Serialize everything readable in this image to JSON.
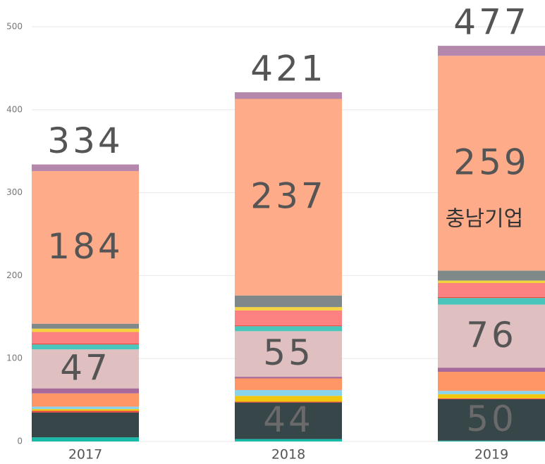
{
  "chart_data": {
    "type": "stacked_bar",
    "categories": [
      "2017",
      "2018",
      "2019"
    ],
    "totals": [
      334,
      421,
      477
    ],
    "annotation": "충남기업",
    "ylim": [
      0,
      500
    ],
    "yticks": [
      0,
      100,
      200,
      300,
      400,
      500
    ],
    "grid": true,
    "series": [
      {
        "color": "#1ab8a8",
        "values": [
          5,
          3,
          1
        ]
      },
      {
        "color": "#374649",
        "values": [
          30,
          44,
          50
        ],
        "value_labels": [
          null,
          "44",
          "50"
        ]
      },
      {
        "color": "#e8443a",
        "values": [
          2,
          1,
          1
        ]
      },
      {
        "color": "#f2c80f",
        "values": [
          2,
          7,
          5
        ]
      },
      {
        "color": "#8ad4eb",
        "values": [
          3,
          7,
          4
        ]
      },
      {
        "color": "#fe9666",
        "values": [
          16,
          14,
          23
        ]
      },
      {
        "color": "#a66999",
        "values": [
          6,
          2,
          5
        ]
      },
      {
        "color": "#dfbfbf",
        "values": [
          47,
          55,
          76
        ],
        "value_labels": [
          "47",
          "55",
          "76"
        ]
      },
      {
        "color": "#4ac5bb",
        "values": [
          6,
          6,
          8
        ]
      },
      {
        "color": "#e8443a",
        "values": [
          1,
          1,
          1
        ]
      },
      {
        "color": "#fb8281",
        "values": [
          14,
          18,
          17
        ]
      },
      {
        "color": "#f5d33f",
        "values": [
          4,
          4,
          3
        ]
      },
      {
        "color": "#7f898a",
        "values": [
          6,
          14,
          12
        ]
      },
      {
        "color": "#fdab89",
        "values": [
          184,
          237,
          259
        ],
        "value_labels": [
          "184",
          "237",
          "259"
        ]
      },
      {
        "color": "#b687ac",
        "values": [
          8,
          8,
          12
        ]
      }
    ]
  }
}
